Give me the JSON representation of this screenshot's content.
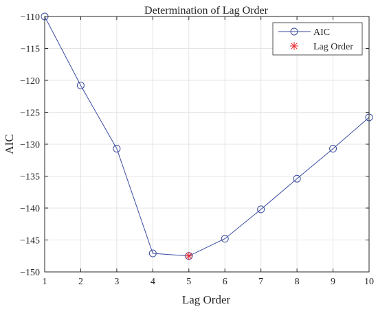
{
  "chart_data": {
    "type": "line",
    "title": "Determination of Lag Order",
    "xlabel": "Lag Order",
    "ylabel": "AIC",
    "xlim": [
      1,
      10
    ],
    "ylim": [
      -150,
      -110
    ],
    "xticks": [
      1,
      2,
      3,
      4,
      5,
      6,
      7,
      8,
      9,
      10
    ],
    "yticks": [
      -110,
      -115,
      -120,
      -125,
      -130,
      -135,
      -140,
      -145,
      -150
    ],
    "grid": true,
    "legend_position": "top-right",
    "series": [
      {
        "name": "AIC",
        "marker": "circle",
        "color": "#3a4ba1",
        "x": [
          1,
          2,
          3,
          4,
          5,
          6,
          7,
          8,
          9,
          10
        ],
        "y": [
          -110.0,
          -120.8,
          -130.7,
          -147.1,
          -147.5,
          -144.8,
          -140.2,
          -135.4,
          -130.7,
          -125.8
        ]
      },
      {
        "name": "Lag Order",
        "marker": "asterisk",
        "color": "#e8262c",
        "x": [
          5
        ],
        "y": [
          -147.5
        ]
      }
    ]
  }
}
